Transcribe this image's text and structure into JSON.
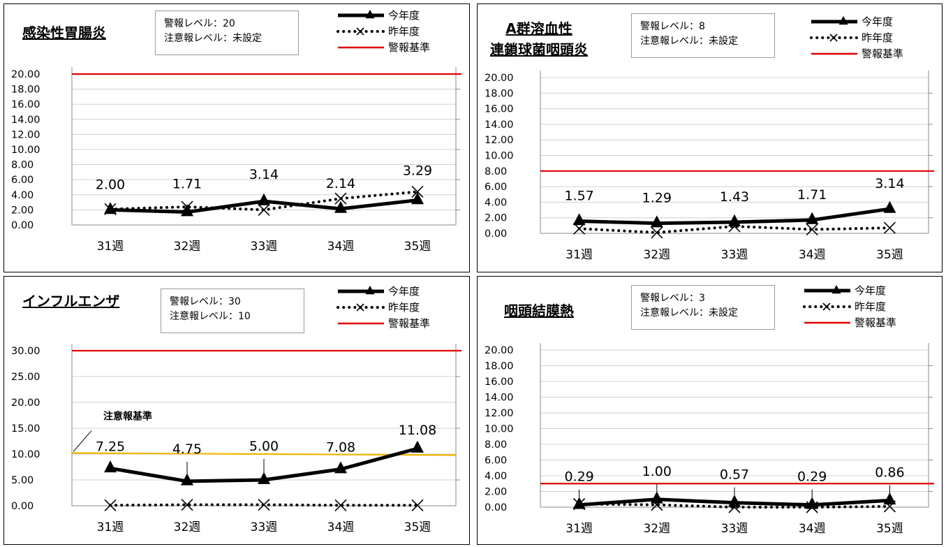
{
  "legend": {
    "this_year": "今年度",
    "last_year": "昨年度",
    "alarm": "警報基準"
  },
  "colors": {
    "this_year": "#000000",
    "last_year": "#000000",
    "alarm_line": "#e00000",
    "caution_line": "#f0b400",
    "grid": "#d0d0d0"
  },
  "chart_data": [
    {
      "type": "line",
      "title": "感染性胃腸炎",
      "info": [
        "警報レベル：20",
        "注意報レベル：未設定"
      ],
      "categories": [
        "31週",
        "32週",
        "33週",
        "34週",
        "35週"
      ],
      "yticks": [
        "0.00",
        "2.00",
        "4.00",
        "6.00",
        "8.00",
        "10.00",
        "12.00",
        "14.00",
        "16.00",
        "18.00",
        "20.00"
      ],
      "ylim": [
        0,
        20
      ],
      "grid": true,
      "series": [
        {
          "name": "今年度",
          "values": [
            2.0,
            1.71,
            3.14,
            2.14,
            3.29
          ]
        },
        {
          "name": "昨年度",
          "values": [
            2.1,
            2.4,
            2.0,
            3.5,
            4.4
          ]
        }
      ],
      "data_labels": [
        "2.00",
        "1.71",
        "3.14",
        "2.14",
        "3.29"
      ],
      "alarm_level": 20
    },
    {
      "type": "line",
      "title": "A群溶血性連鎖球菌咽頭炎",
      "title_lines": [
        "A群溶血性",
        "連鎖球菌咽頭炎"
      ],
      "info": [
        "警報レベル：8",
        "注意報レベル：未設定"
      ],
      "categories": [
        "31週",
        "32週",
        "33週",
        "34週",
        "35週"
      ],
      "yticks": [
        "0.00",
        "2.00",
        "4.00",
        "6.00",
        "8.00",
        "10.00",
        "12.00",
        "14.00",
        "16.00",
        "18.00",
        "20.00"
      ],
      "ylim": [
        0,
        20
      ],
      "grid": true,
      "series": [
        {
          "name": "今年度",
          "values": [
            1.57,
            1.29,
            1.43,
            1.71,
            3.14
          ]
        },
        {
          "name": "昨年度",
          "values": [
            0.6,
            0.1,
            0.9,
            0.5,
            0.7
          ]
        }
      ],
      "data_labels": [
        "1.57",
        "1.29",
        "1.43",
        "1.71",
        "3.14"
      ],
      "alarm_level": 8
    },
    {
      "type": "line",
      "title": "インフルエンザ",
      "info": [
        "警報レベル：30",
        "注意報レベル：10"
      ],
      "categories": [
        "31週",
        "32週",
        "33週",
        "34週",
        "35週"
      ],
      "yticks": [
        "0.00",
        "5.00",
        "10.00",
        "15.00",
        "20.00",
        "25.00",
        "30.00"
      ],
      "ylim": [
        0,
        30
      ],
      "grid": true,
      "series": [
        {
          "name": "今年度",
          "values": [
            7.25,
            4.75,
            5.0,
            7.08,
            11.08
          ]
        },
        {
          "name": "昨年度",
          "values": [
            0.1,
            0.2,
            0.2,
            0.1,
            0.1
          ]
        }
      ],
      "data_labels": [
        "7.25",
        "4.75",
        "5.00",
        "7.08",
        "11.08"
      ],
      "alarm_level": 30,
      "caution": {
        "label": "注意報基準",
        "start": 10.2,
        "end": 9.8
      }
    },
    {
      "type": "line",
      "title": "咽頭結膜熱",
      "info": [
        "警報レベル：3",
        "注意報レベル：未設定"
      ],
      "categories": [
        "31週",
        "32週",
        "33週",
        "34週",
        "35週"
      ],
      "yticks": [
        "0.00",
        "2.00",
        "4.00",
        "6.00",
        "8.00",
        "10.00",
        "12.00",
        "14.00",
        "16.00",
        "18.00",
        "20.00"
      ],
      "ylim": [
        0,
        20
      ],
      "grid": true,
      "series": [
        {
          "name": "今年度",
          "values": [
            0.29,
            1.0,
            0.57,
            0.29,
            0.86
          ]
        },
        {
          "name": "昨年度",
          "values": [
            0.4,
            0.3,
            0.0,
            0.0,
            0.1
          ]
        }
      ],
      "data_labels": [
        "0.29",
        "1.00",
        "0.57",
        "0.29",
        "0.86"
      ],
      "alarm_level": 3
    }
  ]
}
